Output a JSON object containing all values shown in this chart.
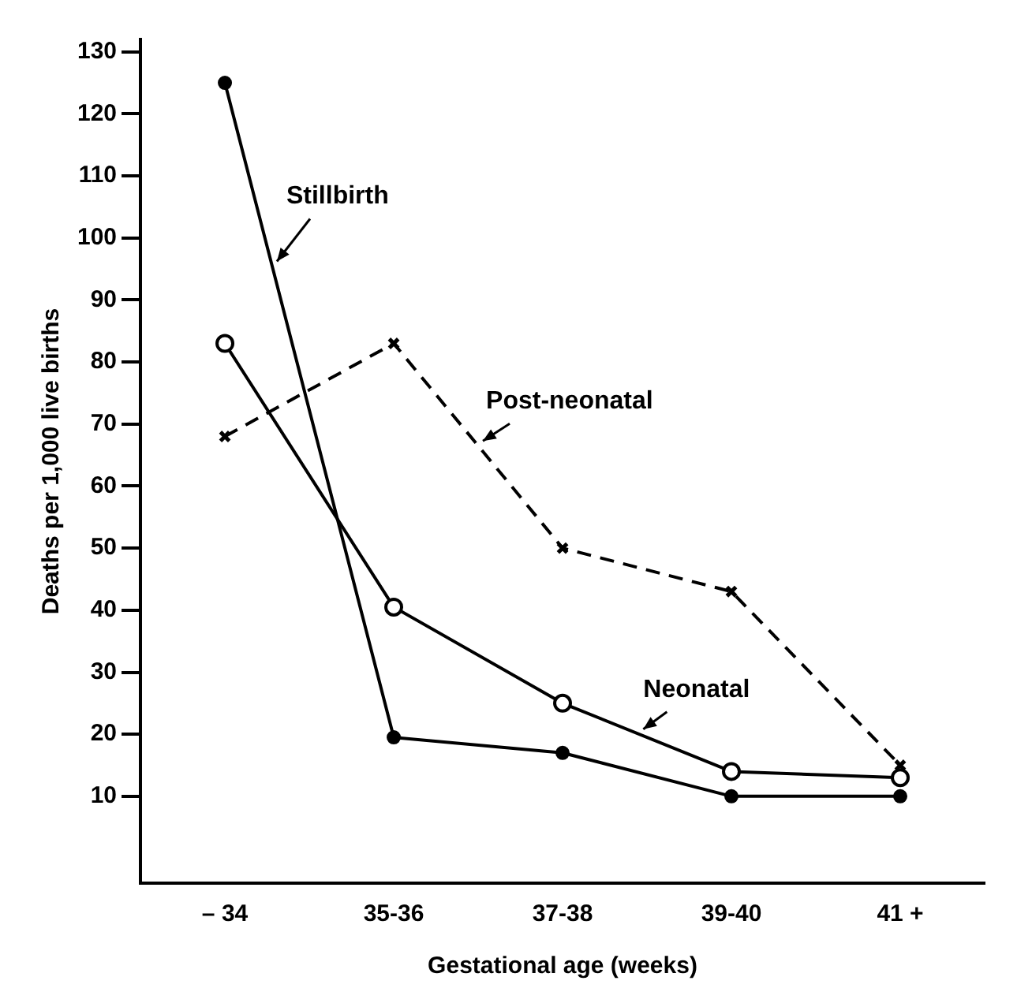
{
  "chart_data": {
    "type": "line",
    "xlabel": "Gestational age (weeks)",
    "ylabel": "Deaths per 1,000 live births",
    "categories": [
      "– 34",
      "35-36",
      "37-38",
      "39-40",
      "41 +"
    ],
    "ylim": [
      -4,
      132
    ],
    "yticks": [
      10,
      20,
      30,
      40,
      50,
      60,
      70,
      80,
      90,
      100,
      110,
      120,
      130
    ],
    "grid": false,
    "legend": false,
    "series": [
      {
        "name": "Stillbirth",
        "color": "#000000",
        "marker": "circle",
        "line_style": "solid",
        "values": [
          125,
          19.5,
          17,
          10,
          10
        ]
      },
      {
        "name": "Neonatal",
        "color": "#000000",
        "marker": "circle",
        "line_style": "solid",
        "values": [
          83,
          40.5,
          25,
          14,
          13
        ]
      },
      {
        "name": "Post-neonatal",
        "color": "#000000",
        "marker": "cross",
        "line_style": "dashed",
        "values": [
          68,
          83,
          50,
          43,
          15
        ]
      }
    ]
  }
}
